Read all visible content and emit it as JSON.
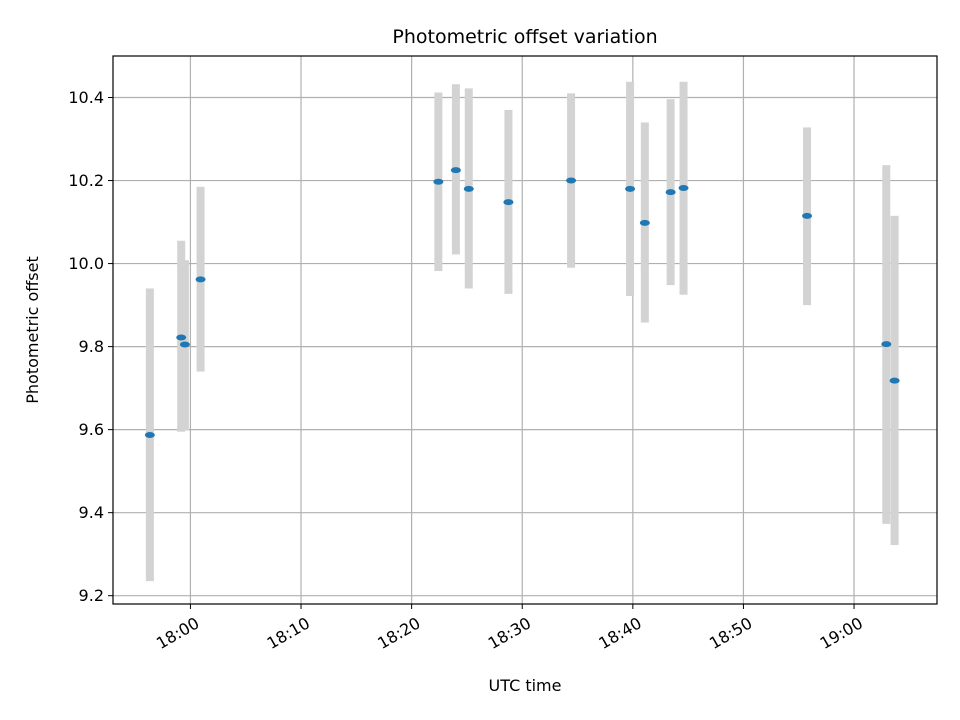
{
  "chart_data": {
    "type": "scatter",
    "title": "Photometric offset variation",
    "xlabel": "UTC time",
    "ylabel": "Photometric offset",
    "x_axis": {
      "type": "time",
      "range": [
        "17:53:00",
        "19:07:30"
      ],
      "ticks": [
        "18:00",
        "18:10",
        "18:20",
        "18:30",
        "18:40",
        "18:50",
        "19:00"
      ]
    },
    "y_axis": {
      "range": [
        9.18,
        10.5
      ],
      "ticks": [
        "9.2",
        "9.4",
        "9.6",
        "9.8",
        "10.0",
        "10.2",
        "10.4"
      ]
    },
    "grid": true,
    "colors": {
      "point": "#1f77b4",
      "error_bar": "#d3d3d3"
    },
    "points": [
      {
        "time": "17:56:20",
        "y": 9.587,
        "ylow": 9.235,
        "yhigh": 9.94
      },
      {
        "time": "17:59:10",
        "y": 9.822,
        "ylow": 9.595,
        "yhigh": 10.055
      },
      {
        "time": "17:59:30",
        "y": 9.805,
        "ylow": 9.598,
        "yhigh": 10.008
      },
      {
        "time": "18:00:55",
        "y": 9.962,
        "ylow": 9.74,
        "yhigh": 10.185
      },
      {
        "time": "18:22:25",
        "y": 10.197,
        "ylow": 9.982,
        "yhigh": 10.412
      },
      {
        "time": "18:24:00",
        "y": 10.225,
        "ylow": 10.022,
        "yhigh": 10.432
      },
      {
        "time": "18:25:10",
        "y": 10.18,
        "ylow": 9.94,
        "yhigh": 10.422
      },
      {
        "time": "18:28:45",
        "y": 10.148,
        "ylow": 9.927,
        "yhigh": 10.37
      },
      {
        "time": "18:34:25",
        "y": 10.2,
        "ylow": 9.99,
        "yhigh": 10.41
      },
      {
        "time": "18:39:45",
        "y": 10.18,
        "ylow": 9.922,
        "yhigh": 10.438
      },
      {
        "time": "18:41:05",
        "y": 10.098,
        "ylow": 9.858,
        "yhigh": 10.34
      },
      {
        "time": "18:43:25",
        "y": 10.172,
        "ylow": 9.948,
        "yhigh": 10.396
      },
      {
        "time": "18:44:35",
        "y": 10.182,
        "ylow": 9.925,
        "yhigh": 10.438
      },
      {
        "time": "18:55:45",
        "y": 10.115,
        "ylow": 9.9,
        "yhigh": 10.328
      },
      {
        "time": "19:02:55",
        "y": 9.806,
        "ylow": 9.373,
        "yhigh": 10.237
      },
      {
        "time": "19:03:40",
        "y": 9.718,
        "ylow": 9.322,
        "yhigh": 10.115
      }
    ]
  }
}
